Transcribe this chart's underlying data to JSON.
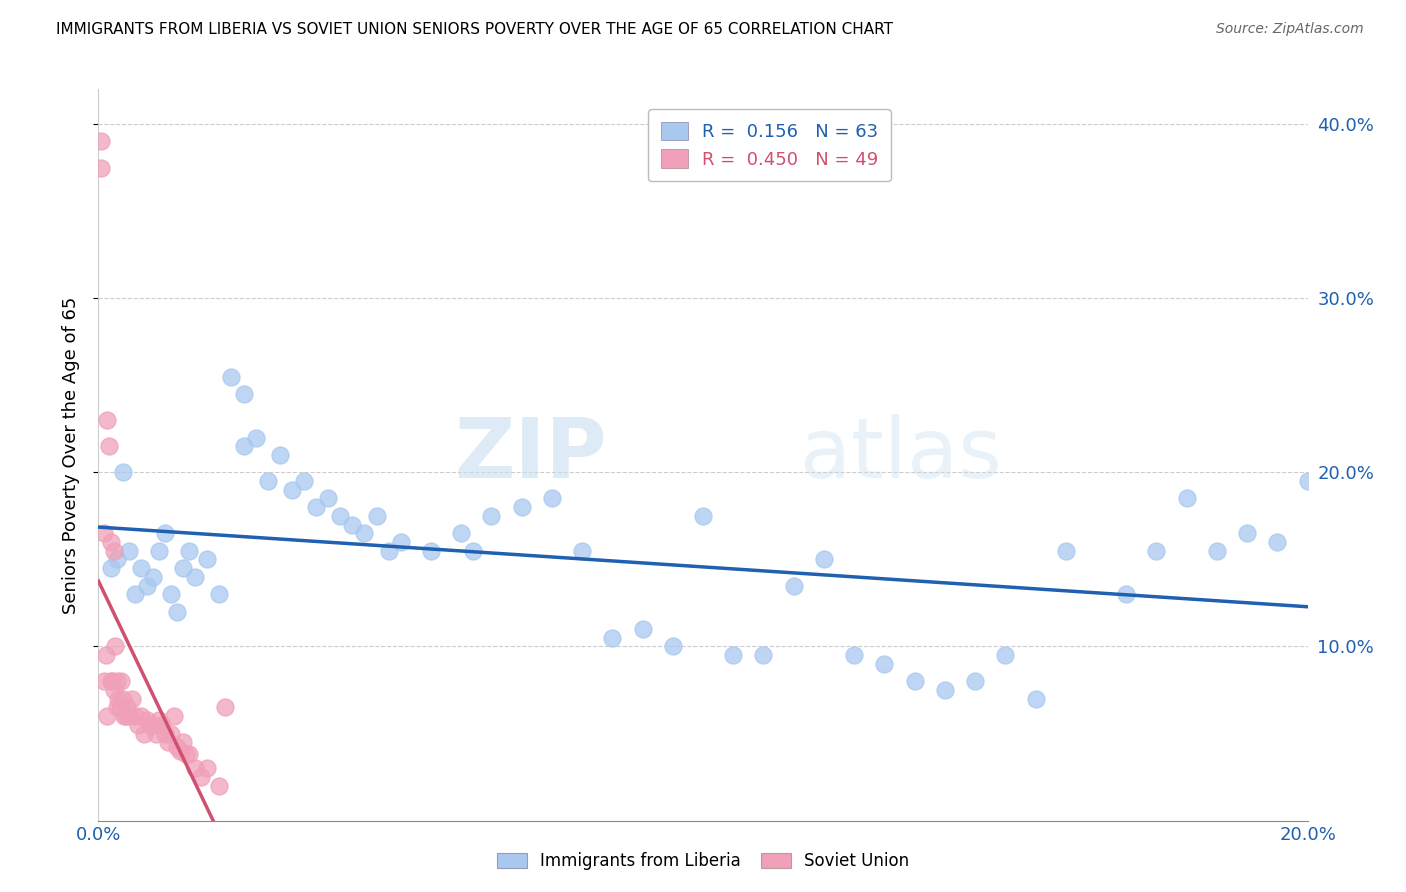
{
  "title": "IMMIGRANTS FROM LIBERIA VS SOVIET UNION SENIORS POVERTY OVER THE AGE OF 65 CORRELATION CHART",
  "source": "Source: ZipAtlas.com",
  "ylabel": "Seniors Poverty Over the Age of 65",
  "xlim": [
    0.0,
    0.2
  ],
  "ylim": [
    0.0,
    0.42
  ],
  "ytick_labels_right": [
    "10.0%",
    "20.0%",
    "30.0%",
    "40.0%"
  ],
  "r_liberia": 0.156,
  "n_liberia": 63,
  "r_soviet": 0.45,
  "n_soviet": 49,
  "color_liberia": "#a8c8f0",
  "color_soviet": "#f0a0b8",
  "color_line_liberia": "#2060b0",
  "color_line_soviet": "#d05070",
  "watermark_zip": "ZIP",
  "watermark_atlas": "atlas",
  "liberia_x": [
    0.002,
    0.003,
    0.004,
    0.005,
    0.006,
    0.007,
    0.008,
    0.009,
    0.01,
    0.011,
    0.012,
    0.013,
    0.014,
    0.015,
    0.016,
    0.018,
    0.02,
    0.022,
    0.024,
    0.024,
    0.026,
    0.028,
    0.03,
    0.032,
    0.034,
    0.036,
    0.038,
    0.04,
    0.042,
    0.044,
    0.046,
    0.048,
    0.05,
    0.055,
    0.06,
    0.062,
    0.065,
    0.07,
    0.075,
    0.08,
    0.085,
    0.09,
    0.095,
    0.1,
    0.105,
    0.11,
    0.115,
    0.12,
    0.125,
    0.13,
    0.135,
    0.14,
    0.15,
    0.16,
    0.17,
    0.18,
    0.19,
    0.195,
    0.2,
    0.155,
    0.145,
    0.175,
    0.185
  ],
  "liberia_y": [
    0.145,
    0.15,
    0.2,
    0.155,
    0.13,
    0.145,
    0.135,
    0.14,
    0.155,
    0.165,
    0.13,
    0.12,
    0.145,
    0.155,
    0.14,
    0.15,
    0.13,
    0.255,
    0.245,
    0.215,
    0.22,
    0.195,
    0.21,
    0.19,
    0.195,
    0.18,
    0.185,
    0.175,
    0.17,
    0.165,
    0.175,
    0.155,
    0.16,
    0.155,
    0.165,
    0.155,
    0.175,
    0.18,
    0.185,
    0.155,
    0.105,
    0.11,
    0.1,
    0.175,
    0.095,
    0.095,
    0.135,
    0.15,
    0.095,
    0.09,
    0.08,
    0.075,
    0.095,
    0.155,
    0.13,
    0.185,
    0.165,
    0.16,
    0.195,
    0.07,
    0.08,
    0.155,
    0.155
  ],
  "soviet_x": [
    0.0005,
    0.0005,
    0.001,
    0.001,
    0.0012,
    0.0015,
    0.0015,
    0.0018,
    0.002,
    0.002,
    0.0022,
    0.0025,
    0.0025,
    0.0028,
    0.003,
    0.003,
    0.0033,
    0.0035,
    0.0038,
    0.004,
    0.0042,
    0.0045,
    0.0048,
    0.005,
    0.0055,
    0.006,
    0.0065,
    0.007,
    0.0075,
    0.008,
    0.0085,
    0.009,
    0.0095,
    0.01,
    0.0105,
    0.011,
    0.0115,
    0.012,
    0.0125,
    0.013,
    0.0135,
    0.014,
    0.0145,
    0.015,
    0.016,
    0.017,
    0.018,
    0.02,
    0.021
  ],
  "soviet_y": [
    0.39,
    0.375,
    0.08,
    0.165,
    0.095,
    0.23,
    0.06,
    0.215,
    0.08,
    0.16,
    0.08,
    0.155,
    0.075,
    0.1,
    0.08,
    0.065,
    0.07,
    0.065,
    0.08,
    0.07,
    0.06,
    0.06,
    0.065,
    0.06,
    0.07,
    0.06,
    0.055,
    0.06,
    0.05,
    0.058,
    0.055,
    0.055,
    0.05,
    0.058,
    0.055,
    0.05,
    0.045,
    0.05,
    0.06,
    0.042,
    0.04,
    0.045,
    0.038,
    0.038,
    0.03,
    0.025,
    0.03,
    0.02,
    0.065
  ]
}
